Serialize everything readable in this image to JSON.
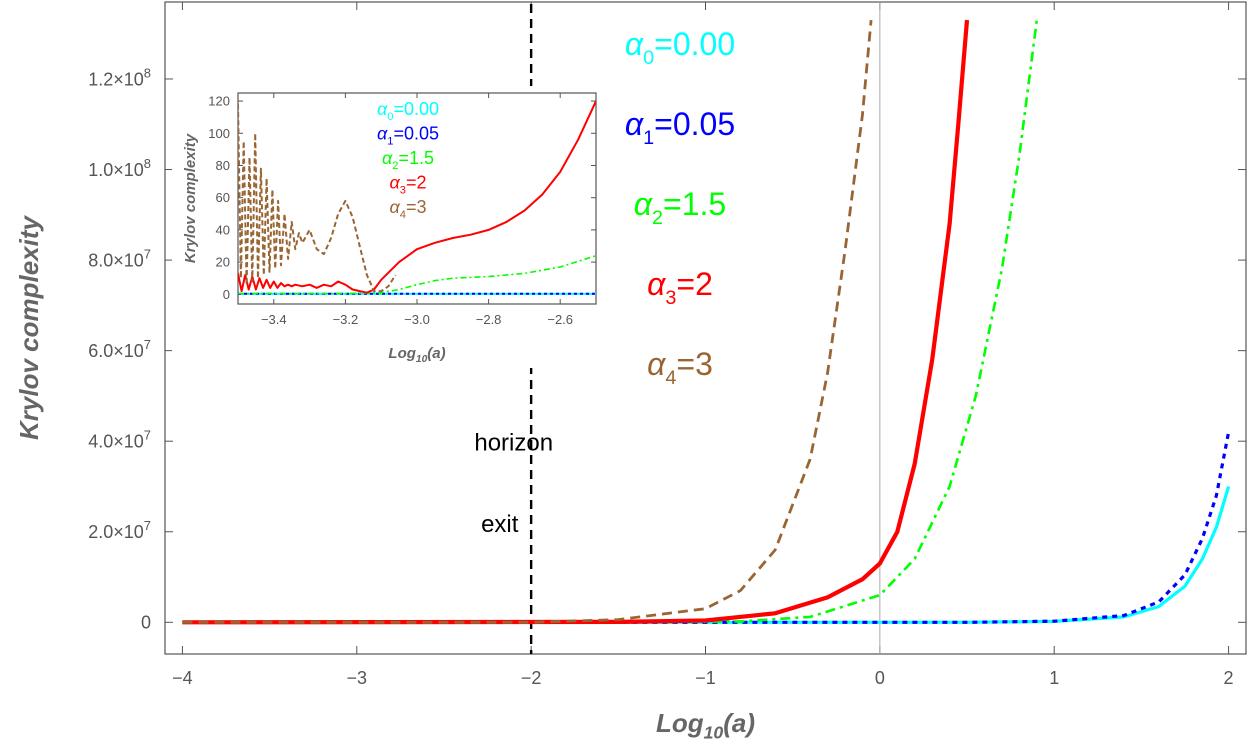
{
  "chart_data": [
    {
      "type": "line",
      "role": "main",
      "xlabel": "Log10(a)",
      "xlabel_main": "Log",
      "xlabel_sub": "10",
      "xlabel_tail": "(a)",
      "ylabel": "Krylov complexity",
      "xlim": [
        -4.1,
        2.1
      ],
      "ylim": [
        -7000000,
        137000000
      ],
      "x_ticks": [
        -4,
        -3,
        -2,
        -1,
        0,
        1,
        2
      ],
      "x_tick_labels": [
        "−4",
        "−3",
        "−2",
        "−1",
        "0",
        "1",
        "2"
      ],
      "y_ticks": [
        0,
        20000000,
        40000000,
        60000000,
        80000000,
        100000000,
        120000000
      ],
      "y_tick_labels": [
        {
          "mantissa": "0",
          "exp": ""
        },
        {
          "mantissa": "2.0×10",
          "exp": "7"
        },
        {
          "mantissa": "4.0×10",
          "exp": "7"
        },
        {
          "mantissa": "6.0×10",
          "exp": "7"
        },
        {
          "mantissa": "8.0×10",
          "exp": "7"
        },
        {
          "mantissa": "1.0×10",
          "exp": "8"
        },
        {
          "mantissa": "1.2×10",
          "exp": "8"
        }
      ],
      "legend_placement": "top-center",
      "legend": [
        {
          "sym": "α",
          "sub": "0",
          "text": "=0.00",
          "color": "#00FFFF"
        },
        {
          "sym": "α",
          "sub": "1",
          "text": "=0.05",
          "color": "#0000FF"
        },
        {
          "sym": "α",
          "sub": "2",
          "text": "=1.5",
          "color": "#00FF00"
        },
        {
          "sym": "α",
          "sub": "3",
          "text": "=2",
          "color": "#FF0000"
        },
        {
          "sym": "α",
          "sub": "4",
          "text": "=3",
          "color": "#996633"
        }
      ],
      "annotations": [
        {
          "text": "horizon",
          "x": -2.1,
          "y": 38000000
        },
        {
          "text": "exit",
          "x": -2.18,
          "y": 20000000
        }
      ],
      "vertical_marker_x": -2,
      "series": [
        {
          "color": "#00FFFF",
          "dash": "",
          "width": 3.2,
          "x": [
            -4,
            -2,
            0,
            0.5,
            1.0,
            1.4,
            1.6,
            1.75,
            1.85,
            1.93,
            2.0
          ],
          "y": [
            0,
            0,
            0,
            0,
            200000,
            1200000,
            3500000,
            8000000,
            14000000,
            21000000,
            30000000
          ]
        },
        {
          "color": "#0000FF",
          "dash": "5,5",
          "width": 3.2,
          "x": [
            -4,
            -2,
            0,
            0.5,
            1.0,
            1.4,
            1.6,
            1.75,
            1.85,
            1.93,
            2.0
          ],
          "y": [
            0,
            0,
            0,
            0,
            250000,
            1500000,
            4500000,
            10500000,
            18500000,
            28000000,
            42000000
          ]
        },
        {
          "color": "#00FF00",
          "dash": "10,5,3,5",
          "width": 2.6,
          "x": [
            -4,
            -1.5,
            -0.8,
            -0.4,
            0,
            0.2,
            0.4,
            0.55,
            0.7,
            0.8,
            0.9
          ],
          "y": [
            0,
            0,
            200000,
            1200000,
            6000000,
            14000000,
            30000000,
            50000000,
            78000000,
            103000000,
            133000000
          ]
        },
        {
          "color": "#FF0000",
          "dash": "",
          "width": 4.2,
          "x": [
            -4,
            -1.5,
            -1.0,
            -0.6,
            -0.3,
            -0.1,
            0,
            0.1,
            0.2,
            0.3,
            0.4,
            0.45,
            0.5
          ],
          "y": [
            0,
            100000,
            400000,
            2000000,
            5500000,
            9500000,
            13000000,
            20000000,
            35000000,
            58000000,
            88000000,
            110000000,
            133000000
          ]
        },
        {
          "color": "#996633",
          "dash": "10,6",
          "width": 2.8,
          "x": [
            -4,
            -2,
            -1.5,
            -1.0,
            -0.8,
            -0.6,
            -0.4,
            -0.3,
            -0.2,
            -0.1,
            -0.05
          ],
          "y": [
            0,
            0,
            600000,
            3000000,
            7000000,
            16000000,
            36000000,
            55000000,
            82000000,
            112000000,
            133000000
          ]
        }
      ]
    },
    {
      "type": "line",
      "role": "inset",
      "xlabel": "Log10(a)",
      "xlabel_main": "Log",
      "xlabel_sub": "10",
      "xlabel_tail": "(a)",
      "ylabel": "Krylov complexity",
      "xlim": [
        -3.5,
        -2.5
      ],
      "ylim": [
        -6,
        125
      ],
      "x_ticks": [
        -3.4,
        -3.2,
        -3.0,
        -2.8,
        -2.6
      ],
      "x_tick_labels": [
        "−3.4",
        "−3.2",
        "−3.0",
        "−2.8",
        "−2.6"
      ],
      "y_ticks": [
        0,
        20,
        40,
        60,
        80,
        100,
        120
      ],
      "y_tick_labels": [
        "0",
        "20",
        "40",
        "60",
        "80",
        "100",
        "120"
      ],
      "legend": [
        {
          "sym": "α",
          "sub": "0",
          "text": "=0.00",
          "color": "#00FFFF"
        },
        {
          "sym": "α",
          "sub": "1",
          "text": "=0.05",
          "color": "#0000FF"
        },
        {
          "sym": "α",
          "sub": "2",
          "text": "=1.5",
          "color": "#00FF00"
        },
        {
          "sym": "α",
          "sub": "3",
          "text": "=2",
          "color": "#FF0000"
        },
        {
          "sym": "α",
          "sub": "4",
          "text": "=3",
          "color": "#996633"
        }
      ],
      "series": [
        {
          "color": "#00FFFF",
          "dash": "",
          "width": 2,
          "x": [
            -3.5,
            -2.5
          ],
          "y": [
            0.3,
            0.3
          ]
        },
        {
          "color": "#0000FF",
          "dash": "3,3",
          "width": 2,
          "x": [
            -3.5,
            -2.5
          ],
          "y": [
            0.4,
            0.4
          ]
        },
        {
          "color": "#00FF00",
          "dash": "6,3,2,3",
          "width": 1.6,
          "x": [
            -3.5,
            -3.2,
            -3.1,
            -3.05,
            -3.0,
            -2.95,
            -2.9,
            -2.8,
            -2.7,
            -2.6,
            -2.5
          ],
          "y": [
            0.5,
            0.5,
            1,
            3,
            6,
            8.5,
            10,
            11,
            13,
            17,
            24
          ]
        },
        {
          "color": "#FF0000",
          "dash": "",
          "width": 2,
          "x": [
            -3.5,
            -3.49,
            -3.48,
            -3.47,
            -3.46,
            -3.45,
            -3.44,
            -3.43,
            -3.42,
            -3.41,
            -3.4,
            -3.39,
            -3.38,
            -3.37,
            -3.36,
            -3.35,
            -3.34,
            -3.32,
            -3.3,
            -3.28,
            -3.26,
            -3.24,
            -3.22,
            -3.2,
            -3.18,
            -3.16,
            -3.14,
            -3.12,
            -3.1,
            -3.05,
            -3.0,
            -2.95,
            -2.9,
            -2.85,
            -2.8,
            -2.75,
            -2.7,
            -2.65,
            -2.6,
            -2.55,
            -2.5
          ],
          "y": [
            13,
            2,
            12,
            3,
            11,
            3,
            10,
            4,
            9,
            4,
            8,
            4,
            7,
            5,
            6,
            5,
            6,
            5,
            6,
            4,
            6,
            5,
            8,
            6,
            3,
            2,
            1,
            3,
            9,
            20,
            28,
            32,
            35,
            37,
            40,
            45,
            52,
            62,
            76,
            96,
            120
          ]
        },
        {
          "color": "#996633",
          "dash": "5,3",
          "width": 2,
          "x": [
            -3.5,
            -3.492,
            -3.484,
            -3.476,
            -3.468,
            -3.46,
            -3.452,
            -3.444,
            -3.436,
            -3.428,
            -3.42,
            -3.412,
            -3.404,
            -3.396,
            -3.388,
            -3.38,
            -3.37,
            -3.36,
            -3.35,
            -3.34,
            -3.33,
            -3.32,
            -3.3,
            -3.28,
            -3.26,
            -3.24,
            -3.22,
            -3.2,
            -3.18,
            -3.16,
            -3.14,
            -3.12,
            -3.1,
            -3.08,
            -3.06
          ],
          "y": [
            118,
            10,
            95,
            6,
            85,
            8,
            100,
            10,
            78,
            12,
            72,
            14,
            65,
            16,
            58,
            18,
            50,
            22,
            45,
            28,
            38,
            32,
            40,
            28,
            25,
            35,
            50,
            58,
            48,
            30,
            12,
            2,
            2,
            5,
            12
          ]
        }
      ]
    }
  ]
}
